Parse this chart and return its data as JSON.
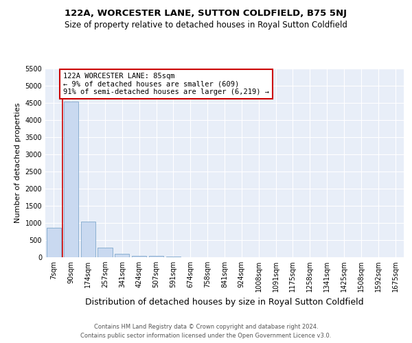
{
  "title": "122A, WORCESTER LANE, SUTTON COLDFIELD, B75 5NJ",
  "subtitle": "Size of property relative to detached houses in Royal Sutton Coldfield",
  "xlabel": "Distribution of detached houses by size in Royal Sutton Coldfield",
  "ylabel": "Number of detached properties",
  "categories": [
    "7sqm",
    "90sqm",
    "174sqm",
    "257sqm",
    "341sqm",
    "424sqm",
    "507sqm",
    "591sqm",
    "674sqm",
    "758sqm",
    "841sqm",
    "924sqm",
    "1008sqm",
    "1091sqm",
    "1175sqm",
    "1258sqm",
    "1341sqm",
    "1425sqm",
    "1508sqm",
    "1592sqm",
    "1675sqm"
  ],
  "values": [
    870,
    4550,
    1050,
    280,
    100,
    50,
    50,
    15,
    5,
    2,
    2,
    1,
    1,
    0,
    0,
    0,
    0,
    0,
    0,
    0,
    0
  ],
  "bar_color": "#c9d9f0",
  "bar_edge_color": "#7fa8cc",
  "property_line_x": 0.5,
  "property_line_color": "#cc0000",
  "annotation_line1": "122A WORCESTER LANE: 85sqm",
  "annotation_line2": "← 9% of detached houses are smaller (609)",
  "annotation_line3": "91% of semi-detached houses are larger (6,219) →",
  "annotation_box_color": "#cc0000",
  "ylim": [
    0,
    5500
  ],
  "yticks": [
    0,
    500,
    1000,
    1500,
    2000,
    2500,
    3000,
    3500,
    4000,
    4500,
    5000,
    5500
  ],
  "footer_line1": "Contains HM Land Registry data © Crown copyright and database right 2024.",
  "footer_line2": "Contains public sector information licensed under the Open Government Licence v3.0.",
  "bg_color": "#ffffff",
  "plot_bg_color": "#e8eef8",
  "grid_color": "#ffffff",
  "title_fontsize": 9.5,
  "subtitle_fontsize": 8.5,
  "ylabel_fontsize": 8,
  "xlabel_fontsize": 9,
  "tick_fontsize": 7,
  "annotation_fontsize": 7.5
}
